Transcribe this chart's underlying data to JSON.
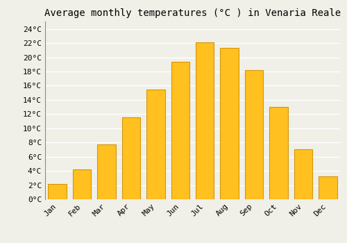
{
  "title": "Average monthly temperatures (°C ) in Venaria Reale",
  "months": [
    "Jan",
    "Feb",
    "Mar",
    "Apr",
    "May",
    "Jun",
    "Jul",
    "Aug",
    "Sep",
    "Oct",
    "Nov",
    "Dec"
  ],
  "values": [
    2.2,
    4.2,
    7.7,
    11.5,
    15.5,
    19.4,
    22.1,
    21.3,
    18.2,
    13.0,
    7.0,
    3.2
  ],
  "bar_color": "#FFC020",
  "bar_edge_color": "#D4960A",
  "background_color": "#F0F0E8",
  "grid_color": "#FFFFFF",
  "ylim": [
    0,
    25
  ],
  "yticks": [
    0,
    2,
    4,
    6,
    8,
    10,
    12,
    14,
    16,
    18,
    20,
    22,
    24
  ],
  "ytick_labels": [
    "0°C",
    "2°C",
    "4°C",
    "6°C",
    "8°C",
    "10°C",
    "12°C",
    "14°C",
    "16°C",
    "18°C",
    "20°C",
    "22°C",
    "24°C"
  ],
  "title_fontsize": 10,
  "tick_fontsize": 8,
  "bar_width": 0.75
}
